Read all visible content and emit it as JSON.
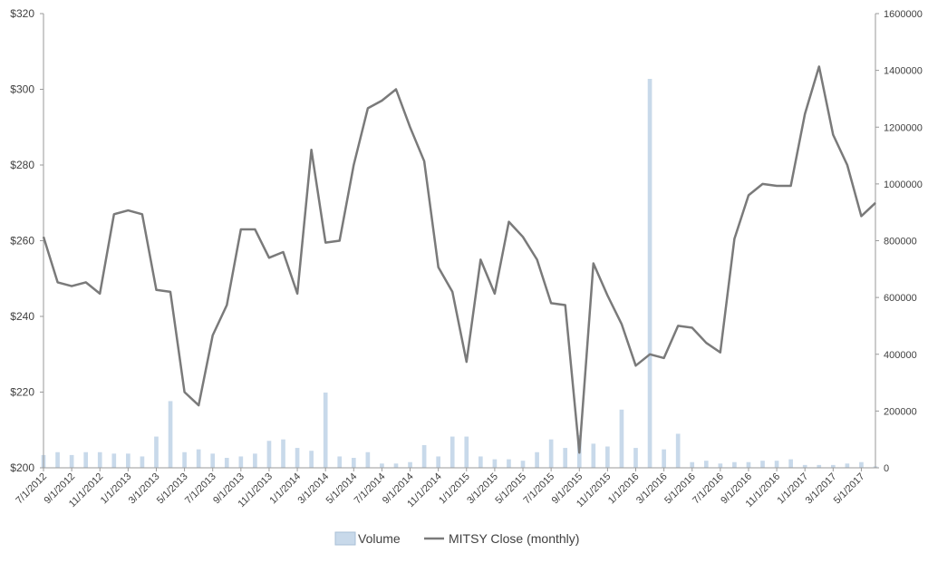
{
  "chart_data": {
    "type": "bar+line",
    "title": "",
    "xlabel": "",
    "ylabel_left": "",
    "ylabel_right": "",
    "left_axis": {
      "min": 200,
      "max": 320,
      "step": 20,
      "tick_labels": [
        "$200",
        "$220",
        "$240",
        "$260",
        "$280",
        "$300",
        "$320"
      ]
    },
    "right_axis": {
      "min": 0,
      "max": 1600000,
      "step": 200000,
      "tick_labels": [
        "0",
        "200000",
        "400000",
        "600000",
        "800000",
        "1000000",
        "1200000",
        "1400000",
        "1600000"
      ]
    },
    "x_tick_labels": [
      "7/1/2012",
      "9/1/2012",
      "11/1/2012",
      "1/1/2013",
      "3/1/2013",
      "5/1/2013",
      "7/1/2013",
      "9/1/2013",
      "11/1/2013",
      "1/1/2014",
      "3/1/2014",
      "5/1/2014",
      "7/1/2014",
      "9/1/2014",
      "11/1/2014",
      "1/1/2015",
      "3/1/2015",
      "5/1/2015",
      "7/1/2015",
      "9/1/2015",
      "11/1/2015",
      "1/1/2016",
      "3/1/2016",
      "5/1/2016",
      "7/1/2016",
      "9/1/2016",
      "11/1/2016",
      "1/1/2017",
      "3/1/2017",
      "5/1/2017"
    ],
    "grid": false,
    "legend_position": "bottom",
    "series": [
      {
        "name": "Volume",
        "type": "bar",
        "axis": "right",
        "color": "#c8d9ea",
        "values": [
          45000,
          55000,
          45000,
          55000,
          55000,
          50000,
          50000,
          40000,
          110000,
          235000,
          55000,
          65000,
          50000,
          35000,
          40000,
          50000,
          95000,
          100000,
          70000,
          60000,
          265000,
          40000,
          35000,
          55000,
          15000,
          15000,
          20000,
          80000,
          40000,
          110000,
          110000,
          40000,
          30000,
          30000,
          25000,
          55000,
          100000,
          70000,
          115000,
          85000,
          75000,
          205000,
          70000,
          1370000,
          65000,
          120000,
          20000,
          25000,
          15000,
          20000,
          20000,
          25000,
          25000,
          30000,
          10000,
          10000,
          10000,
          15000,
          20000,
          5000
        ]
      },
      {
        "name": "MITSY Close (monthly)",
        "type": "line",
        "axis": "left",
        "color": "#7a7a7a",
        "values": [
          261,
          249,
          248,
          249,
          246,
          267,
          268,
          267,
          247,
          246.5,
          220,
          216.5,
          235,
          243,
          263,
          263,
          255.5,
          257,
          246,
          284,
          259.5,
          260,
          280,
          295,
          297,
          300,
          290,
          281,
          253,
          246.5,
          228,
          255,
          246,
          265,
          261,
          255,
          243.5,
          243,
          204,
          254,
          245.5,
          238,
          227,
          230,
          229,
          237.5,
          237,
          233,
          230.5,
          260.5,
          272,
          275,
          274.5,
          274.5,
          293.5,
          306,
          288,
          280,
          266.5,
          270
        ]
      }
    ]
  }
}
